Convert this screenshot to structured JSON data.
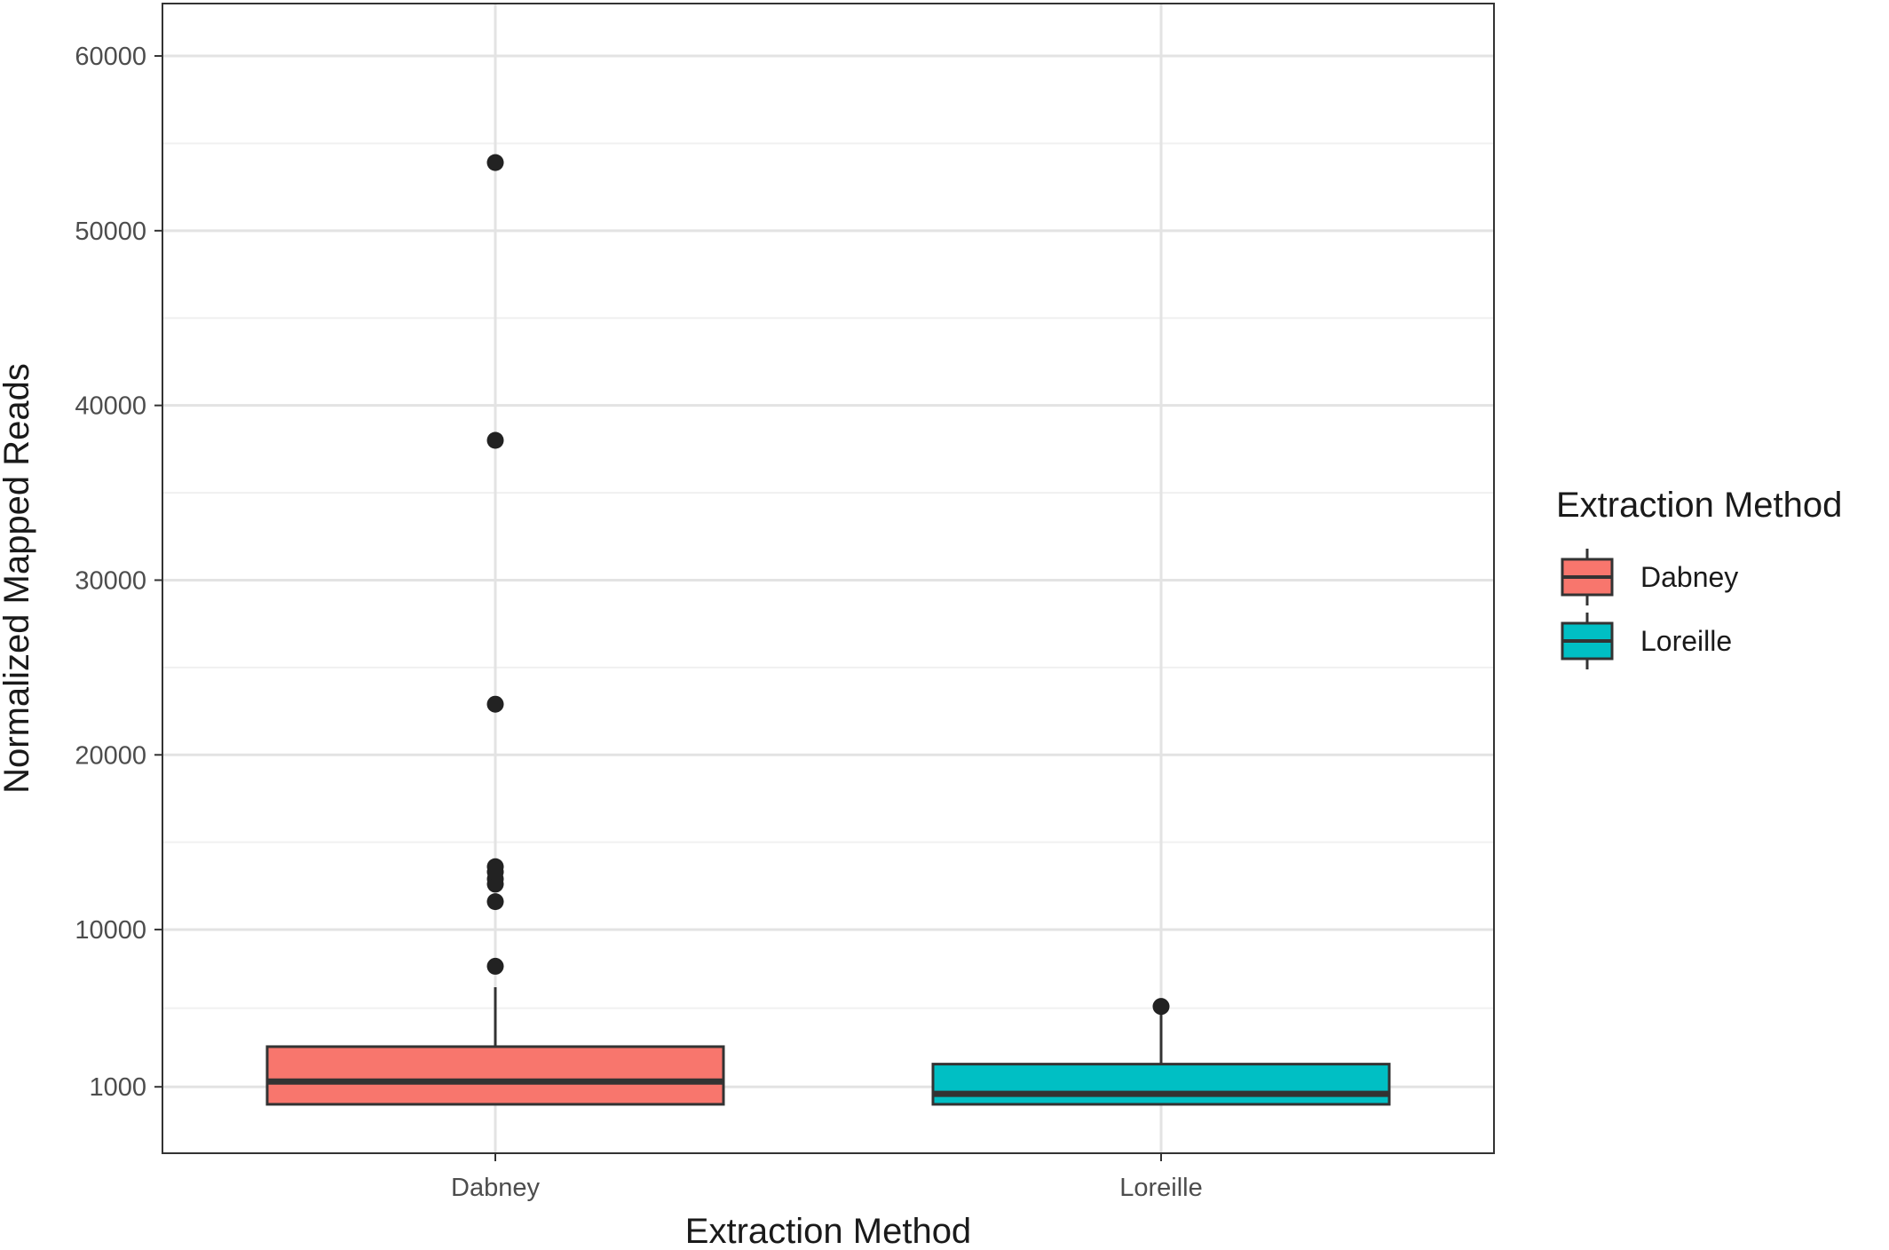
{
  "chart_data": {
    "type": "box",
    "title": "",
    "xlabel": "Extraction Method",
    "ylabel": "Normalized Mapped Reads",
    "categories": [
      "Dabney",
      "Loreille"
    ],
    "y_ticks": [
      {
        "value": 1000,
        "label": "1000"
      },
      {
        "value": 10000,
        "label": "10000"
      },
      {
        "value": 20000,
        "label": "20000"
      },
      {
        "value": 30000,
        "label": "30000"
      },
      {
        "value": 40000,
        "label": "40000"
      },
      {
        "value": 50000,
        "label": "50000"
      },
      {
        "value": 60000,
        "label": "60000"
      }
    ],
    "ylim": [
      -2800,
      63000
    ],
    "grid": true,
    "legend": {
      "title": "Extraction Method",
      "position": "right",
      "entries": [
        {
          "label": "Dabney",
          "color": "#F8766D"
        },
        {
          "label": "Loreille",
          "color": "#00BFC4"
        }
      ]
    },
    "series": [
      {
        "name": "Dabney",
        "color": "#F8766D",
        "whisker_low": 0,
        "q1": 0,
        "median": 1300,
        "q3": 3300,
        "whisker_high": 6700,
        "outliers": [
          7900,
          11600,
          12600,
          12900,
          13300,
          13600,
          22900,
          38000,
          53900
        ]
      },
      {
        "name": "Loreille",
        "color": "#00BFC4",
        "whisker_low": 0,
        "q1": 0,
        "median": 600,
        "q3": 2300,
        "whisker_high": 5200,
        "outliers": [
          5600
        ]
      }
    ]
  }
}
